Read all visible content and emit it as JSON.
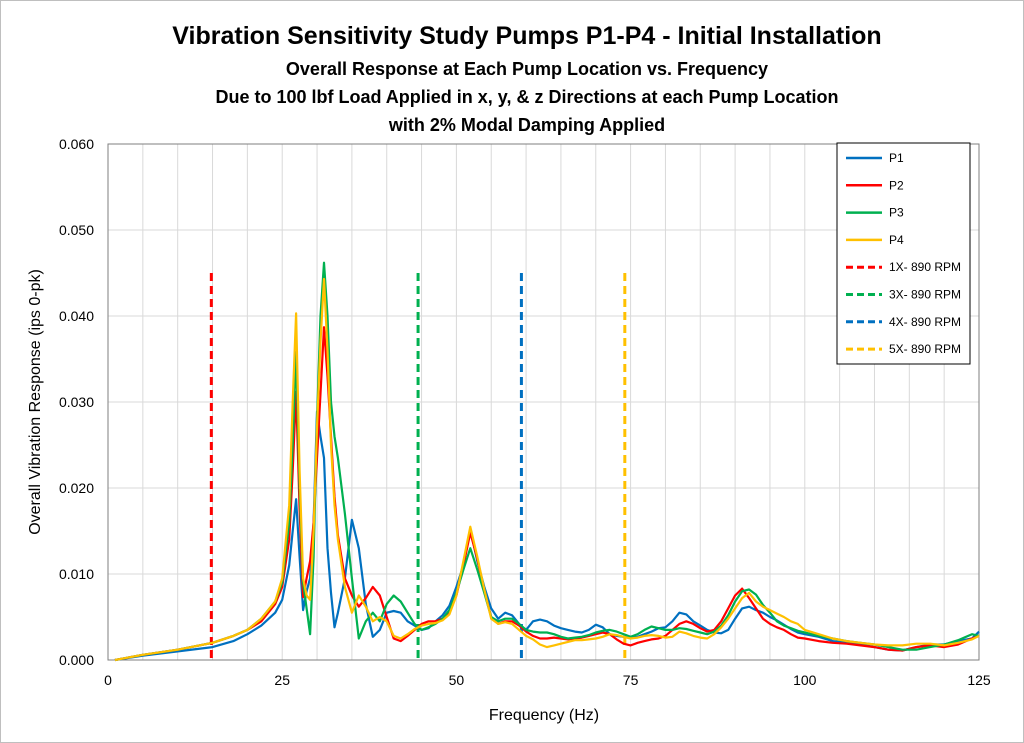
{
  "chart_data": {
    "type": "line",
    "title": "Vibration Sensitivity Study Pumps P1-P4 - Initial Installation",
    "subtitle_lines": [
      "Overall Response at Each Pump Location vs. Frequency",
      "Due to 100 lbf Load Applied in x, y, & z Directions at each Pump Location",
      "with 2% Modal Damping Applied"
    ],
    "xlabel": "Frequency  (Hz)",
    "ylabel": "Overall Vibration Response  (ips 0-pk)",
    "xlim": [
      0,
      125
    ],
    "ylim": [
      0,
      0.06
    ],
    "x_ticks": [
      "0",
      "25",
      "50",
      "75",
      "100",
      "125"
    ],
    "x_tick_values": [
      0,
      25,
      50,
      75,
      100,
      125
    ],
    "y_ticks": [
      "0.000",
      "0.010",
      "0.020",
      "0.030",
      "0.040",
      "0.050",
      "0.060"
    ],
    "y_tick_values": [
      0,
      0.01,
      0.02,
      0.03,
      0.04,
      0.05,
      0.06
    ],
    "grid": {
      "x_step": 5,
      "y_step": 0.01
    },
    "legend_position": "top-right",
    "series": [
      {
        "name": "P1",
        "color": "#0070C0",
        "x": [
          1,
          5,
          10,
          15,
          18,
          20,
          22,
          24,
          25,
          26,
          26.5,
          27,
          27.5,
          28,
          28.5,
          29,
          29.5,
          30,
          30.5,
          31,
          31.5,
          32,
          32.5,
          33,
          34,
          35,
          36,
          37,
          38,
          39,
          40,
          41,
          42,
          43,
          44,
          45,
          46,
          47,
          48,
          49,
          50,
          51,
          52,
          53,
          54,
          55,
          56,
          57,
          58,
          59,
          60,
          61,
          62,
          63,
          64,
          65,
          66,
          67,
          68,
          69,
          70,
          71,
          72,
          73,
          74,
          75,
          76,
          77,
          78,
          79,
          80,
          81,
          82,
          83,
          84,
          85,
          86,
          87,
          88,
          89,
          90,
          91,
          92,
          93,
          94,
          95,
          96,
          97,
          98,
          99,
          100,
          102,
          104,
          106,
          108,
          110,
          112,
          114,
          116,
          118,
          120,
          122,
          124,
          125
        ],
        "y": [
          0,
          0.0005,
          0.001,
          0.0015,
          0.0022,
          0.003,
          0.004,
          0.0055,
          0.007,
          0.011,
          0.015,
          0.0187,
          0.012,
          0.0058,
          0.008,
          0.0095,
          0.016,
          0.0289,
          0.026,
          0.0235,
          0.013,
          0.0078,
          0.0038,
          0.0055,
          0.0095,
          0.0163,
          0.013,
          0.0065,
          0.0027,
          0.0035,
          0.0055,
          0.0057,
          0.0055,
          0.0045,
          0.004,
          0.0035,
          0.0037,
          0.0045,
          0.0052,
          0.0063,
          0.0085,
          0.011,
          0.0152,
          0.0115,
          0.0085,
          0.006,
          0.0048,
          0.0055,
          0.0052,
          0.0042,
          0.0035,
          0.0045,
          0.0047,
          0.0045,
          0.004,
          0.0037,
          0.0035,
          0.0033,
          0.0032,
          0.0035,
          0.0041,
          0.0038,
          0.003,
          0.0028,
          0.0027,
          0.0026,
          0.0027,
          0.003,
          0.0033,
          0.0037,
          0.0038,
          0.0045,
          0.0055,
          0.0053,
          0.0045,
          0.004,
          0.0035,
          0.0032,
          0.0031,
          0.0035,
          0.0048,
          0.006,
          0.0062,
          0.0058,
          0.0055,
          0.005,
          0.0046,
          0.0041,
          0.0036,
          0.0032,
          0.003,
          0.0027,
          0.0022,
          0.002,
          0.0018,
          0.0015,
          0.0012,
          0.0011,
          0.0015,
          0.0018,
          0.0018,
          0.0022,
          0.0025,
          0.0033
        ]
      },
      {
        "name": "P2",
        "color": "#FF0000",
        "x": [
          1,
          5,
          10,
          15,
          18,
          20,
          22,
          24,
          25,
          26,
          26.5,
          27,
          27.5,
          28,
          28.5,
          29,
          29.5,
          30,
          30.5,
          31,
          31.5,
          32,
          32.5,
          33,
          34,
          35,
          36,
          37,
          38,
          39,
          40,
          41,
          42,
          43,
          44,
          45,
          46,
          47,
          48,
          49,
          50,
          51,
          52,
          53,
          54,
          55,
          56,
          57,
          58,
          59,
          60,
          61,
          62,
          63,
          64,
          65,
          66,
          67,
          68,
          69,
          70,
          71,
          72,
          73,
          74,
          75,
          76,
          77,
          78,
          79,
          80,
          81,
          82,
          83,
          84,
          85,
          86,
          87,
          88,
          89,
          90,
          91,
          92,
          93,
          94,
          95,
          96,
          97,
          98,
          99,
          100,
          102,
          104,
          106,
          108,
          110,
          112,
          114,
          116,
          118,
          120,
          122,
          124,
          125
        ],
        "y": [
          0,
          0.0006,
          0.0012,
          0.002,
          0.0028,
          0.0035,
          0.0045,
          0.0065,
          0.0085,
          0.014,
          0.022,
          0.0312,
          0.0175,
          0.0073,
          0.0095,
          0.0115,
          0.016,
          0.0235,
          0.031,
          0.0387,
          0.033,
          0.026,
          0.019,
          0.0145,
          0.0095,
          0.0075,
          0.0062,
          0.0072,
          0.0085,
          0.0075,
          0.005,
          0.0025,
          0.0022,
          0.0028,
          0.0035,
          0.0042,
          0.0045,
          0.0045,
          0.0048,
          0.0055,
          0.0075,
          0.011,
          0.0148,
          0.0118,
          0.008,
          0.005,
          0.0042,
          0.0045,
          0.0045,
          0.004,
          0.0033,
          0.0028,
          0.0025,
          0.0025,
          0.0026,
          0.0025,
          0.0024,
          0.0025,
          0.0026,
          0.0028,
          0.003,
          0.0032,
          0.003,
          0.0024,
          0.0019,
          0.0017,
          0.002,
          0.0022,
          0.0024,
          0.0025,
          0.0028,
          0.0035,
          0.0042,
          0.0045,
          0.0042,
          0.0037,
          0.0033,
          0.0035,
          0.0045,
          0.006,
          0.0075,
          0.0083,
          0.0072,
          0.006,
          0.0048,
          0.0042,
          0.0038,
          0.0035,
          0.003,
          0.0026,
          0.0025,
          0.0022,
          0.002,
          0.0019,
          0.0017,
          0.0015,
          0.0012,
          0.0011,
          0.0015,
          0.0017,
          0.0015,
          0.0018,
          0.0025,
          0.0028
        ]
      },
      {
        "name": "P3",
        "color": "#00B050",
        "x": [
          1,
          5,
          10,
          15,
          18,
          20,
          22,
          24,
          25,
          26,
          26.5,
          27,
          27.5,
          28,
          28.5,
          29,
          29.5,
          30,
          30.5,
          31,
          31.5,
          32,
          32.5,
          33,
          34,
          35,
          36,
          37,
          38,
          39,
          40,
          41,
          42,
          43,
          44,
          45,
          46,
          47,
          48,
          49,
          50,
          51,
          52,
          53,
          54,
          55,
          56,
          57,
          58,
          59,
          60,
          61,
          62,
          63,
          64,
          65,
          66,
          67,
          68,
          69,
          70,
          71,
          72,
          73,
          74,
          75,
          76,
          77,
          78,
          79,
          80,
          81,
          82,
          83,
          84,
          85,
          86,
          87,
          88,
          89,
          90,
          91,
          92,
          93,
          94,
          95,
          96,
          97,
          98,
          99,
          100,
          102,
          104,
          106,
          108,
          110,
          112,
          114,
          116,
          118,
          120,
          122,
          124,
          125
        ],
        "y": [
          0,
          0.0006,
          0.0012,
          0.002,
          0.0028,
          0.0035,
          0.0048,
          0.0068,
          0.009,
          0.016,
          0.025,
          0.0358,
          0.02,
          0.009,
          0.006,
          0.003,
          0.012,
          0.028,
          0.04,
          0.0462,
          0.04,
          0.03,
          0.026,
          0.0235,
          0.017,
          0.0095,
          0.0025,
          0.0045,
          0.0055,
          0.0045,
          0.0065,
          0.0075,
          0.0068,
          0.0055,
          0.0042,
          0.0035,
          0.0038,
          0.0042,
          0.0048,
          0.0058,
          0.0078,
          0.0105,
          0.013,
          0.0105,
          0.0078,
          0.005,
          0.0045,
          0.0048,
          0.0048,
          0.0042,
          0.0035,
          0.0033,
          0.0032,
          0.0032,
          0.003,
          0.0027,
          0.0025,
          0.0026,
          0.0027,
          0.0029,
          0.0032,
          0.0034,
          0.0035,
          0.0033,
          0.003,
          0.0027,
          0.003,
          0.0035,
          0.0039,
          0.0037,
          0.0035,
          0.0035,
          0.0037,
          0.0036,
          0.0034,
          0.0032,
          0.003,
          0.0033,
          0.004,
          0.0052,
          0.0068,
          0.008,
          0.0082,
          0.0076,
          0.0064,
          0.0055,
          0.0045,
          0.004,
          0.0037,
          0.0034,
          0.0032,
          0.0028,
          0.0025,
          0.0022,
          0.002,
          0.0018,
          0.0015,
          0.0012,
          0.0012,
          0.0015,
          0.0018,
          0.0023,
          0.003,
          0.0028
        ]
      },
      {
        "name": "P4",
        "color": "#FFC000",
        "x": [
          1,
          5,
          10,
          15,
          18,
          20,
          22,
          24,
          25,
          26,
          26.5,
          27,
          27.5,
          28,
          28.5,
          29,
          29.5,
          30,
          30.5,
          31,
          31.5,
          32,
          32.5,
          33,
          34,
          35,
          36,
          37,
          38,
          39,
          40,
          41,
          42,
          43,
          44,
          45,
          46,
          47,
          48,
          49,
          50,
          51,
          52,
          53,
          54,
          55,
          56,
          57,
          58,
          59,
          60,
          61,
          62,
          63,
          64,
          65,
          66,
          67,
          68,
          69,
          70,
          71,
          72,
          73,
          74,
          75,
          76,
          77,
          78,
          79,
          80,
          81,
          82,
          83,
          84,
          85,
          86,
          87,
          88,
          89,
          90,
          91,
          92,
          93,
          94,
          95,
          96,
          97,
          98,
          99,
          100,
          102,
          104,
          106,
          108,
          110,
          112,
          114,
          116,
          118,
          120,
          122,
          124,
          125
        ],
        "y": [
          0,
          0.0006,
          0.0012,
          0.002,
          0.0028,
          0.0035,
          0.0048,
          0.0068,
          0.0095,
          0.018,
          0.03,
          0.0403,
          0.022,
          0.0095,
          0.0075,
          0.007,
          0.015,
          0.027,
          0.037,
          0.0443,
          0.036,
          0.025,
          0.018,
          0.014,
          0.0085,
          0.0055,
          0.0075,
          0.0062,
          0.0045,
          0.005,
          0.0045,
          0.0028,
          0.0025,
          0.003,
          0.0036,
          0.004,
          0.0042,
          0.0043,
          0.0046,
          0.0053,
          0.0075,
          0.0115,
          0.0155,
          0.012,
          0.0082,
          0.0048,
          0.0042,
          0.0044,
          0.0042,
          0.0035,
          0.0028,
          0.0024,
          0.0018,
          0.0015,
          0.0017,
          0.0019,
          0.0021,
          0.0023,
          0.0023,
          0.0024,
          0.0025,
          0.0027,
          0.003,
          0.0029,
          0.0027,
          0.0025,
          0.0026,
          0.0028,
          0.0029,
          0.0028,
          0.0026,
          0.0027,
          0.0033,
          0.0031,
          0.0028,
          0.0026,
          0.0025,
          0.003,
          0.0038,
          0.0048,
          0.006,
          0.0072,
          0.0078,
          0.0068,
          0.0062,
          0.0058,
          0.0054,
          0.005,
          0.0045,
          0.0042,
          0.0035,
          0.003,
          0.0025,
          0.0022,
          0.002,
          0.0018,
          0.0017,
          0.0017,
          0.0019,
          0.0019,
          0.0017,
          0.002,
          0.0024,
          0.0028
        ]
      }
    ],
    "reference_lines": [
      {
        "name": "1X- 890 RPM",
        "color": "#FF0000",
        "x": 14.83,
        "y_top": 0.045
      },
      {
        "name": "3X- 890 RPM",
        "color": "#00B050",
        "x": 44.5,
        "y_top": 0.045
      },
      {
        "name": "4X- 890 RPM",
        "color": "#0070C0",
        "x": 59.33,
        "y_top": 0.045
      },
      {
        "name": "5X- 890 RPM",
        "color": "#FFC000",
        "x": 74.17,
        "y_top": 0.045
      }
    ]
  }
}
